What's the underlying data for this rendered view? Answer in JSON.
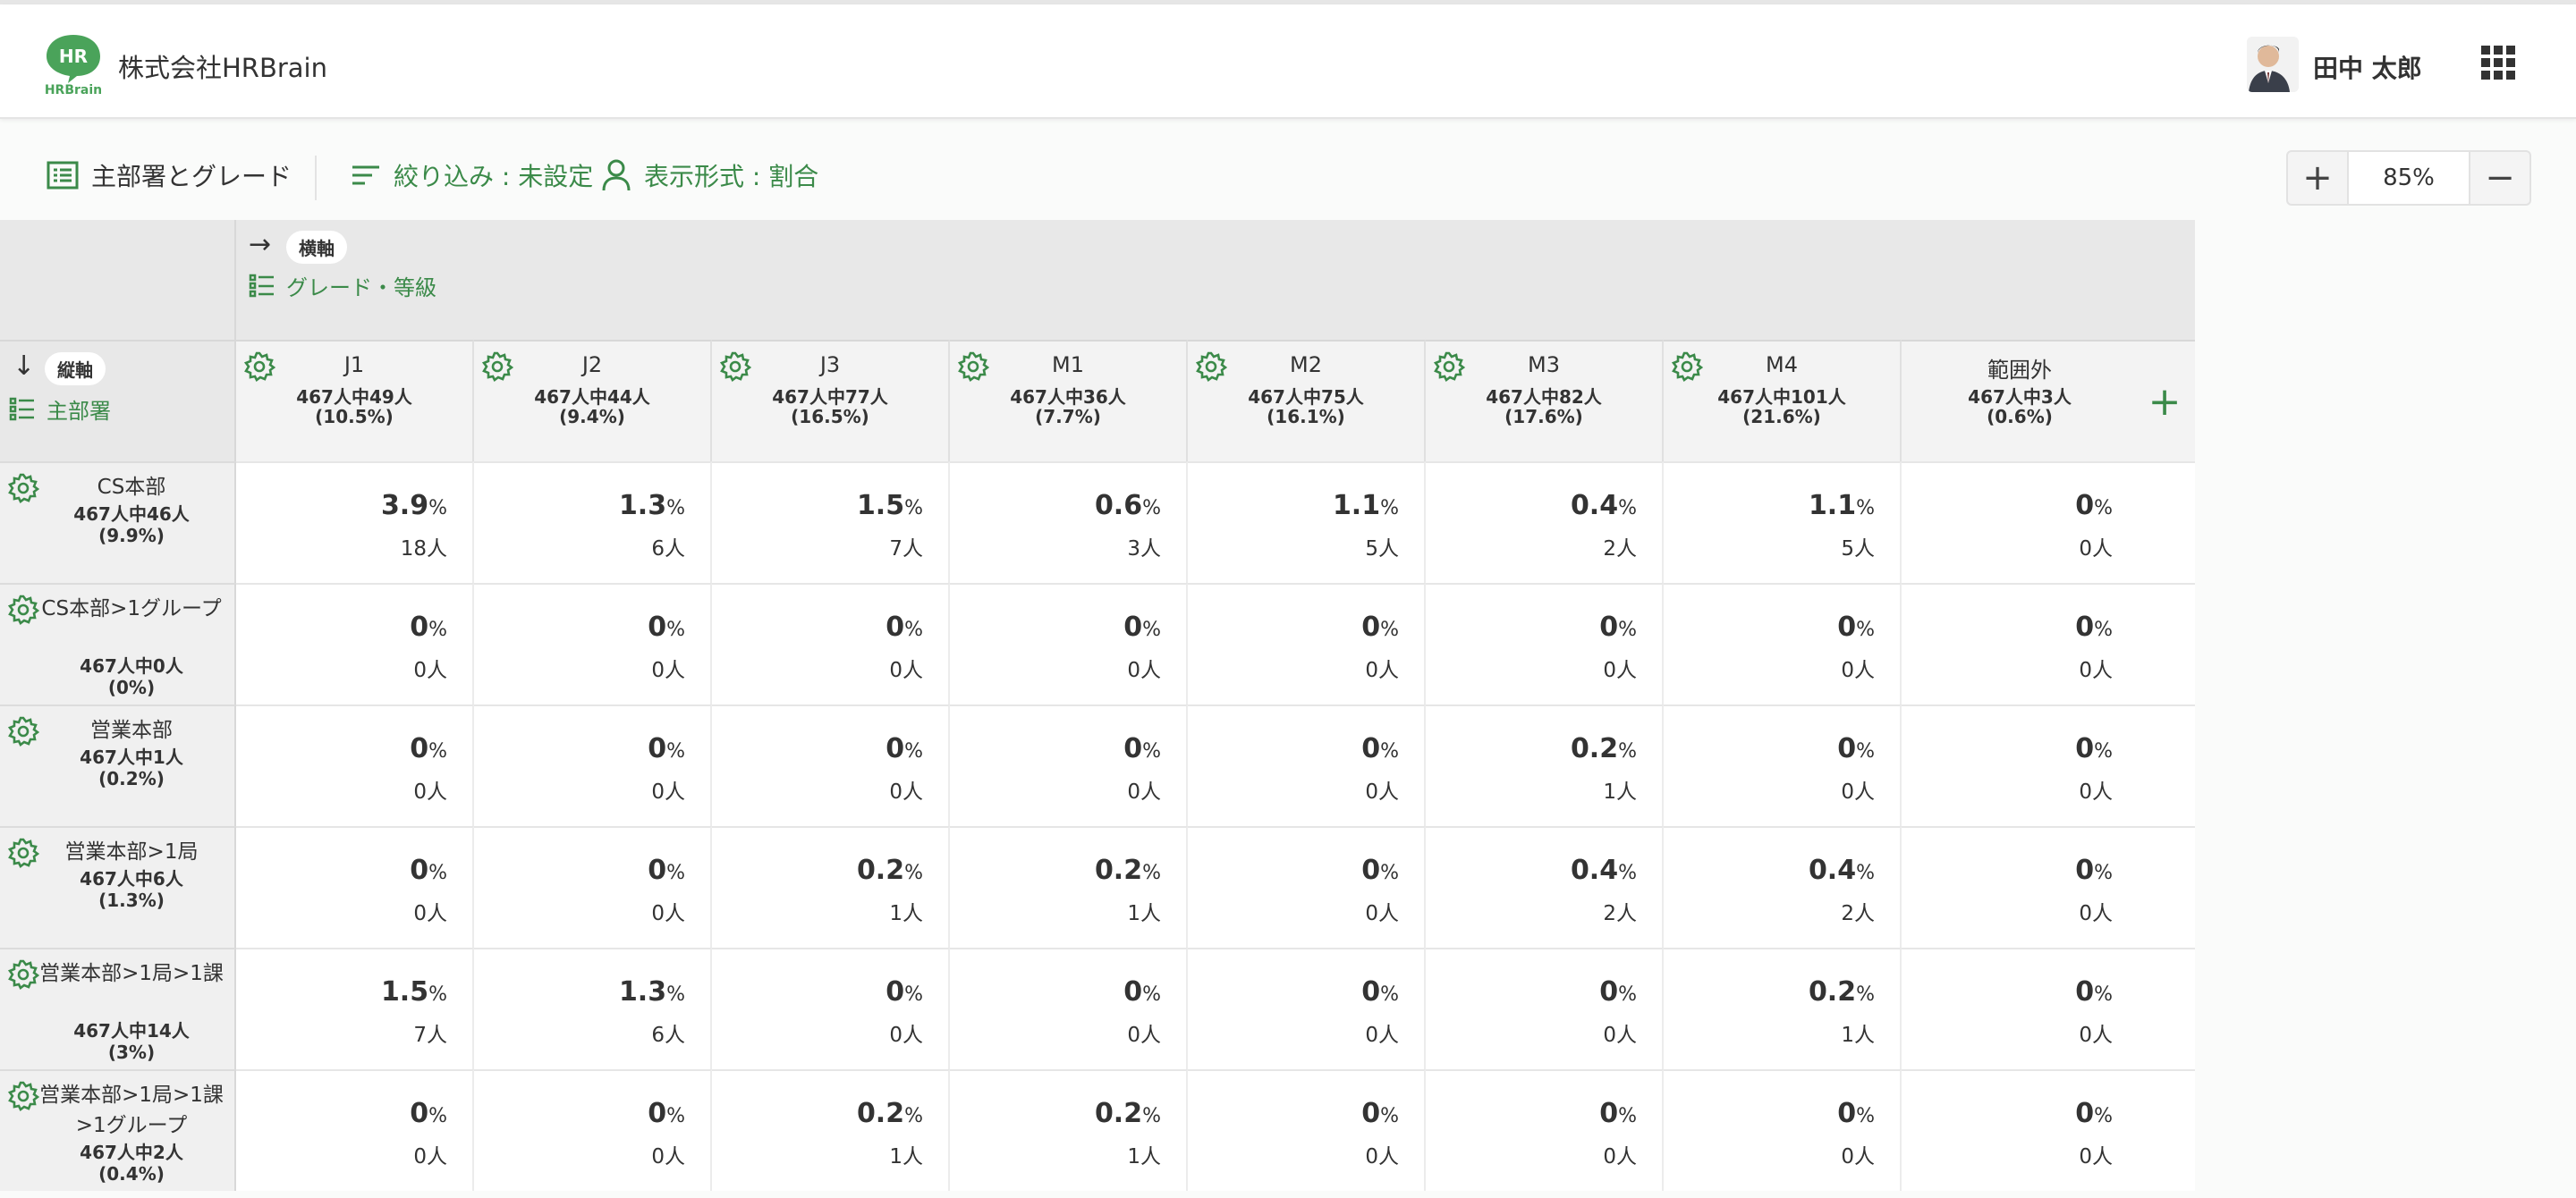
{
  "header": {
    "logo_text": "HR",
    "logo_sub": "HRBrain",
    "company": "株式会社HRBrain",
    "user_name": "田中 太郎",
    "brand_color": "#3b8a49"
  },
  "toolbar": {
    "dept_grade_label": "主部署とグレード",
    "filter_label": "絞り込み : 未設定",
    "view_label": "表示形式 : 割合",
    "zoom_value": "85%",
    "zoom_in": "+",
    "zoom_out": "−"
  },
  "axes": {
    "x_pill": "横軸",
    "x_label": "グレード・等級",
    "y_pill": "縦軸",
    "y_label": "主部署",
    "x_arrow": "→",
    "y_arrow": "↓"
  },
  "columns": [
    {
      "name": "J1",
      "count": "467人中49人",
      "pct": "(10.5%)"
    },
    {
      "name": "J2",
      "count": "467人中44人",
      "pct": "(9.4%)"
    },
    {
      "name": "J3",
      "count": "467人中77人",
      "pct": "(16.5%)"
    },
    {
      "name": "M1",
      "count": "467人中36人",
      "pct": "(7.7%)"
    },
    {
      "name": "M2",
      "count": "467人中75人",
      "pct": "(16.1%)"
    },
    {
      "name": "M3",
      "count": "467人中82人",
      "pct": "(17.6%)"
    },
    {
      "name": "M4",
      "count": "467人中101人",
      "pct": "(21.6%)"
    },
    {
      "name": "範囲外",
      "count": "467人中3人",
      "pct": "(0.6%)"
    }
  ],
  "rows": [
    {
      "name": "CS本部",
      "count": "467人中46人",
      "pct": "(9.9%)",
      "cells": [
        [
          "3.9",
          "18人"
        ],
        [
          "1.3",
          "6人"
        ],
        [
          "1.5",
          "7人"
        ],
        [
          "0.6",
          "3人"
        ],
        [
          "1.1",
          "5人"
        ],
        [
          "0.4",
          "2人"
        ],
        [
          "1.1",
          "5人"
        ],
        [
          "0",
          "0人"
        ]
      ]
    },
    {
      "name": "CS本部>1グループ",
      "count": "467人中0人",
      "pct": "(0%)",
      "cells": [
        [
          "0",
          "0人"
        ],
        [
          "0",
          "0人"
        ],
        [
          "0",
          "0人"
        ],
        [
          "0",
          "0人"
        ],
        [
          "0",
          "0人"
        ],
        [
          "0",
          "0人"
        ],
        [
          "0",
          "0人"
        ],
        [
          "0",
          "0人"
        ]
      ]
    },
    {
      "name": "営業本部",
      "count": "467人中1人",
      "pct": "(0.2%)",
      "cells": [
        [
          "0",
          "0人"
        ],
        [
          "0",
          "0人"
        ],
        [
          "0",
          "0人"
        ],
        [
          "0",
          "0人"
        ],
        [
          "0",
          "0人"
        ],
        [
          "0.2",
          "1人"
        ],
        [
          "0",
          "0人"
        ],
        [
          "0",
          "0人"
        ]
      ]
    },
    {
      "name": "営業本部>1局",
      "count": "467人中6人",
      "pct": "(1.3%)",
      "cells": [
        [
          "0",
          "0人"
        ],
        [
          "0",
          "0人"
        ],
        [
          "0.2",
          "1人"
        ],
        [
          "0.2",
          "1人"
        ],
        [
          "0",
          "0人"
        ],
        [
          "0.4",
          "2人"
        ],
        [
          "0.4",
          "2人"
        ],
        [
          "0",
          "0人"
        ]
      ]
    },
    {
      "name": "営業本部>1局>1課",
      "count": "467人中14人",
      "pct": "(3%)",
      "cells": [
        [
          "1.5",
          "7人"
        ],
        [
          "1.3",
          "6人"
        ],
        [
          "0",
          "0人"
        ],
        [
          "0",
          "0人"
        ],
        [
          "0",
          "0人"
        ],
        [
          "0",
          "0人"
        ],
        [
          "0.2",
          "1人"
        ],
        [
          "0",
          "0人"
        ]
      ]
    },
    {
      "name": "営業本部>1局>1課>1グループ",
      "count": "467人中2人",
      "pct": "(0.4%)",
      "cells": [
        [
          "0",
          "0人"
        ],
        [
          "0",
          "0人"
        ],
        [
          "0.2",
          "1人"
        ],
        [
          "0.2",
          "1人"
        ],
        [
          "0",
          "0人"
        ],
        [
          "0",
          "0人"
        ],
        [
          "0",
          "0人"
        ],
        [
          "0",
          "0人"
        ]
      ]
    }
  ],
  "unit_pct": "%",
  "add_column": "+"
}
